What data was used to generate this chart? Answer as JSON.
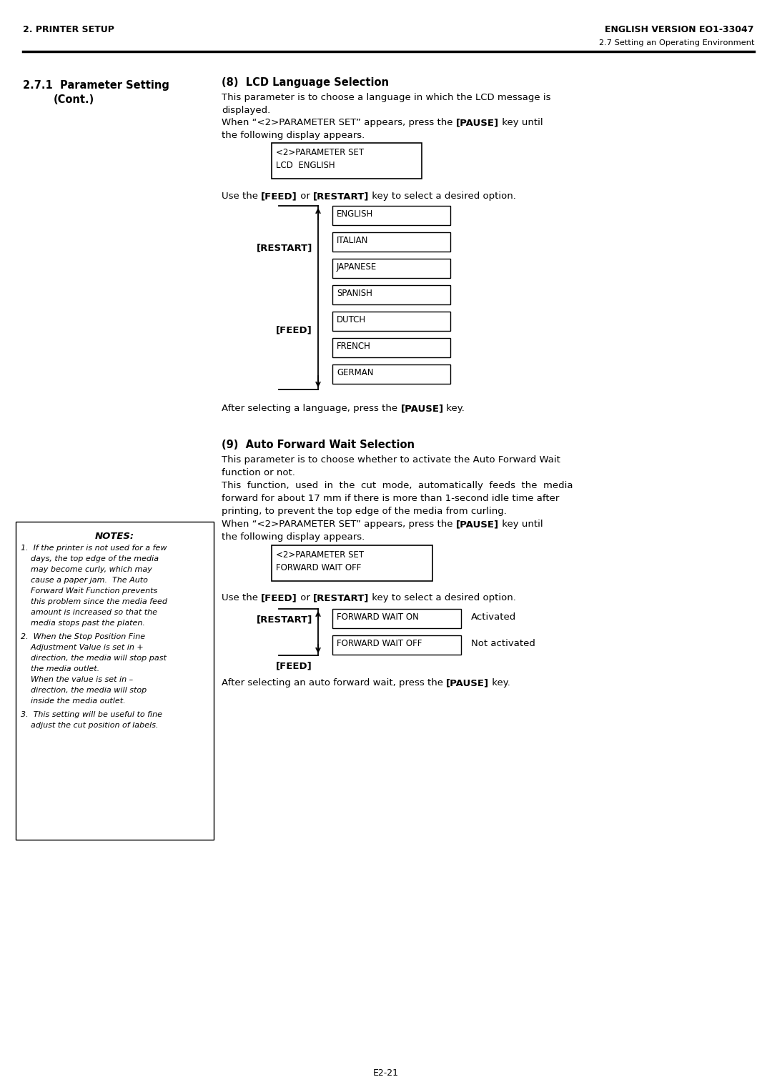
{
  "page_width": 10.8,
  "page_height": 15.28,
  "bg_color": "#ffffff",
  "header_left": "2. PRINTER SETUP",
  "header_right": "ENGLISH VERSION EO1-33047",
  "header_sub_right": "2.7 Setting an Operating Environment",
  "sec8_title": "(8)  LCD Language Selection",
  "lcd_box_line1": "<2>PARAMETER SET",
  "lcd_box_line2": "LCD  ENGLISH",
  "languages": [
    "ENGLISH",
    "ITALIAN",
    "JAPANESE",
    "SPANISH",
    "DUTCH",
    "FRENCH",
    "GERMAN"
  ],
  "sec9_title": "(9)  Auto Forward Wait Selection",
  "fwd_box_line1": "<2>PARAMETER SET",
  "fwd_box_line2": "FORWARD WAIT OFF",
  "fwd_options": [
    [
      "FORWARD WAIT ON",
      "Activated"
    ],
    [
      "FORWARD WAIT OFF",
      "Not activated"
    ]
  ],
  "notes_title": "NOTES:",
  "footer": "E2-21"
}
